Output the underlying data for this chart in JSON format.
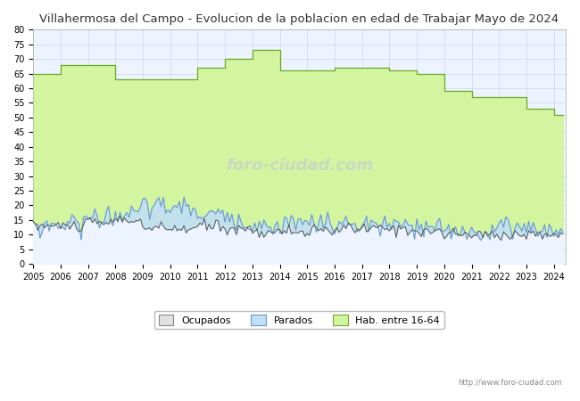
{
  "title": "Villahermosa del Campo - Evolucion de la poblacion en edad de Trabajar Mayo de 2024",
  "ylim": [
    0,
    80
  ],
  "yticks": [
    0,
    5,
    10,
    15,
    20,
    25,
    30,
    35,
    40,
    45,
    50,
    55,
    60,
    65,
    70,
    75,
    80
  ],
  "xlim_start": 2005,
  "xlim_end": 2024.42,
  "years": [
    2005,
    2006,
    2007,
    2008,
    2009,
    2010,
    2011,
    2012,
    2013,
    2014,
    2015,
    2016,
    2017,
    2018,
    2019,
    2020,
    2021,
    2022,
    2023,
    2024
  ],
  "hab_values": [
    65,
    68,
    68,
    63,
    63,
    63,
    67,
    70,
    73,
    66,
    66,
    67,
    67,
    66,
    65,
    59,
    57,
    57,
    53,
    51
  ],
  "url": "http://www.foro-ciudad.com",
  "background_color": "#ffffff",
  "plot_bg_color": "#eef4ff",
  "grid_color": "#c8d8e8",
  "hab_fill_color": "#d4f5a0",
  "hab_line_color": "#6aaa30",
  "ocupados_line_color": "#555555",
  "parados_fill_color": "#c0dff5",
  "parados_line_color": "#6699cc",
  "title_color": "#333333",
  "title_fontsize": 9.5,
  "watermark_color": "#c0c8d8",
  "watermark_alpha": 0.6,
  "legend_fontsize": 8,
  "tick_fontsize": 7,
  "ocupados_seed": 10,
  "parados_seed": 20,
  "ocupados_base": [
    13,
    13,
    14,
    15,
    12,
    12,
    13,
    12,
    11,
    11,
    11,
    12,
    12,
    12,
    11,
    10,
    10,
    10,
    10,
    10
  ],
  "parados_base": [
    13,
    14,
    16,
    17,
    20,
    19,
    17,
    15,
    13,
    14,
    14,
    13,
    13,
    13,
    12,
    11,
    11,
    13,
    12,
    11
  ]
}
